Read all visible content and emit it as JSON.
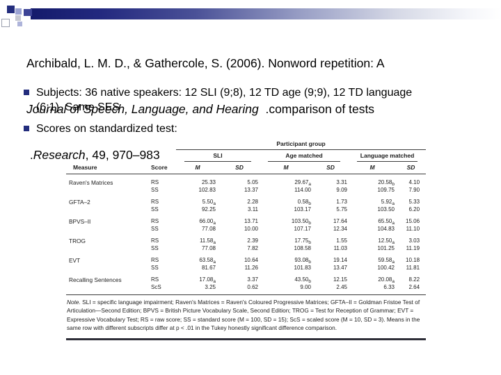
{
  "colors": {
    "accent_navy": "#232d7d"
  },
  "title": {
    "line1": "Archibald, L. M. D., & Gathercole, S. (2006). Nonword repetition: A",
    "line2_italic": "Journal of Speech, Language, and Hearing",
    "line2_rest": "  .comparison of tests",
    "line3_pre": " .",
    "line3_italic": "Research",
    "line3_rest": ", 49, 970–983"
  },
  "bullets": [
    {
      "lines": [
        "Subjects: 36 native speakers: 12 SLI (9;8), 12 TD age (9;9), 12 TD language",
        "(6;1). Same SES"
      ]
    },
    {
      "lines": [
        "Scores on standardized test:"
      ]
    }
  ],
  "table": {
    "spanner": "Participant group",
    "measure_header": "Measure",
    "score_header": "Score",
    "groups": [
      {
        "label": "SLI"
      },
      {
        "label": "Age matched"
      },
      {
        "label": "Language matched"
      }
    ],
    "stat_header": {
      "m": "M",
      "sd": "SD"
    },
    "rows": [
      {
        "measure": "Raven's Matrices",
        "lines": [
          {
            "score": "RS",
            "values": [
              {
                "v": "25.33"
              },
              {
                "v": "5.05"
              },
              {
                "v": "29.67",
                "sub": "a"
              },
              {
                "v": "3.31"
              },
              {
                "v": "20.58",
                "sub": "b"
              },
              {
                "v": "4.10"
              }
            ]
          },
          {
            "score": "SS",
            "values": [
              {
                "v": "102.83"
              },
              {
                "v": "13.37"
              },
              {
                "v": "114.00"
              },
              {
                "v": "9.09"
              },
              {
                "v": "109.75"
              },
              {
                "v": "7.90"
              }
            ]
          }
        ]
      },
      {
        "measure": "GFTA–2",
        "lines": [
          {
            "score": "RS",
            "values": [
              {
                "v": "5.50",
                "sub": "a"
              },
              {
                "v": "2.28"
              },
              {
                "v": "0.58",
                "sub": "b"
              },
              {
                "v": "1.73"
              },
              {
                "v": "5.92",
                "sub": "a"
              },
              {
                "v": "5.33"
              }
            ]
          },
          {
            "score": "SS",
            "values": [
              {
                "v": "92.25"
              },
              {
                "v": "3.11"
              },
              {
                "v": "103.17"
              },
              {
                "v": "5.75"
              },
              {
                "v": "103.50"
              },
              {
                "v": "6.20"
              }
            ]
          }
        ]
      },
      {
        "measure": "BPVS–II",
        "lines": [
          {
            "score": "RS",
            "values": [
              {
                "v": "66.00",
                "sub": "a"
              },
              {
                "v": "13.71"
              },
              {
                "v": "103.50",
                "sub": "b"
              },
              {
                "v": "17.64"
              },
              {
                "v": "65.50",
                "sub": "a"
              },
              {
                "v": "15.06"
              }
            ]
          },
          {
            "score": "SS",
            "values": [
              {
                "v": "77.08"
              },
              {
                "v": "10.00"
              },
              {
                "v": "107.17"
              },
              {
                "v": "12.34"
              },
              {
                "v": "104.83"
              },
              {
                "v": "11.10"
              }
            ]
          }
        ]
      },
      {
        "measure": "TROG",
        "lines": [
          {
            "score": "RS",
            "values": [
              {
                "v": "11.58",
                "sub": "a"
              },
              {
                "v": "2.39"
              },
              {
                "v": "17.75",
                "sub": "b"
              },
              {
                "v": "1.55"
              },
              {
                "v": "12.50",
                "sub": "a"
              },
              {
                "v": "3.03"
              }
            ]
          },
          {
            "score": "SS",
            "values": [
              {
                "v": "77.08"
              },
              {
                "v": "7.82"
              },
              {
                "v": "108.58"
              },
              {
                "v": "11.03"
              },
              {
                "v": "101.25"
              },
              {
                "v": "11.19"
              }
            ]
          }
        ]
      },
      {
        "measure": "EVT",
        "lines": [
          {
            "score": "RS",
            "values": [
              {
                "v": "63.58",
                "sub": "a"
              },
              {
                "v": "10.64"
              },
              {
                "v": "93.08",
                "sub": "b"
              },
              {
                "v": "19.14"
              },
              {
                "v": "59.58",
                "sub": "a"
              },
              {
                "v": "10.18"
              }
            ]
          },
          {
            "score": "SS",
            "values": [
              {
                "v": "81.67"
              },
              {
                "v": "11.26"
              },
              {
                "v": "101.83"
              },
              {
                "v": "13.47"
              },
              {
                "v": "100.42"
              },
              {
                "v": "11.81"
              }
            ]
          }
        ]
      },
      {
        "measure": "Recalling Sentences",
        "lines": [
          {
            "score": "RS",
            "values": [
              {
                "v": "17.08",
                "sub": "a"
              },
              {
                "v": "3.37"
              },
              {
                "v": "43.50",
                "sub": "b"
              },
              {
                "v": "12.15"
              },
              {
                "v": "20.08",
                "sub": "a"
              },
              {
                "v": "8.22"
              }
            ]
          },
          {
            "score": "ScS",
            "values": [
              {
                "v": "3.25"
              },
              {
                "v": "0.62"
              },
              {
                "v": "9.00"
              },
              {
                "v": "2.45"
              },
              {
                "v": "6.33"
              },
              {
                "v": "2.64"
              }
            ]
          }
        ]
      }
    ],
    "note_label": "Note.",
    "note_text": "  SLI = specific language impairment; Raven's Matrices = Raven's Coloured Progressive Matrices; GFTA–II = Goldman Fristoe Test of Articulation—Second Edition; BPVS = British Picture Vocabulary Scale, Second Edition; TROG = Test for Reception of Grammar; EVT = Expressive Vocabulary Test; RS = raw score; SS = standard score (M = 100, SD = 15); ScS = scaled score (M = 10, SD = 3). Means in the same row with different subscripts differ at p < .01 in the Tukey honestly significant difference comparison."
  }
}
